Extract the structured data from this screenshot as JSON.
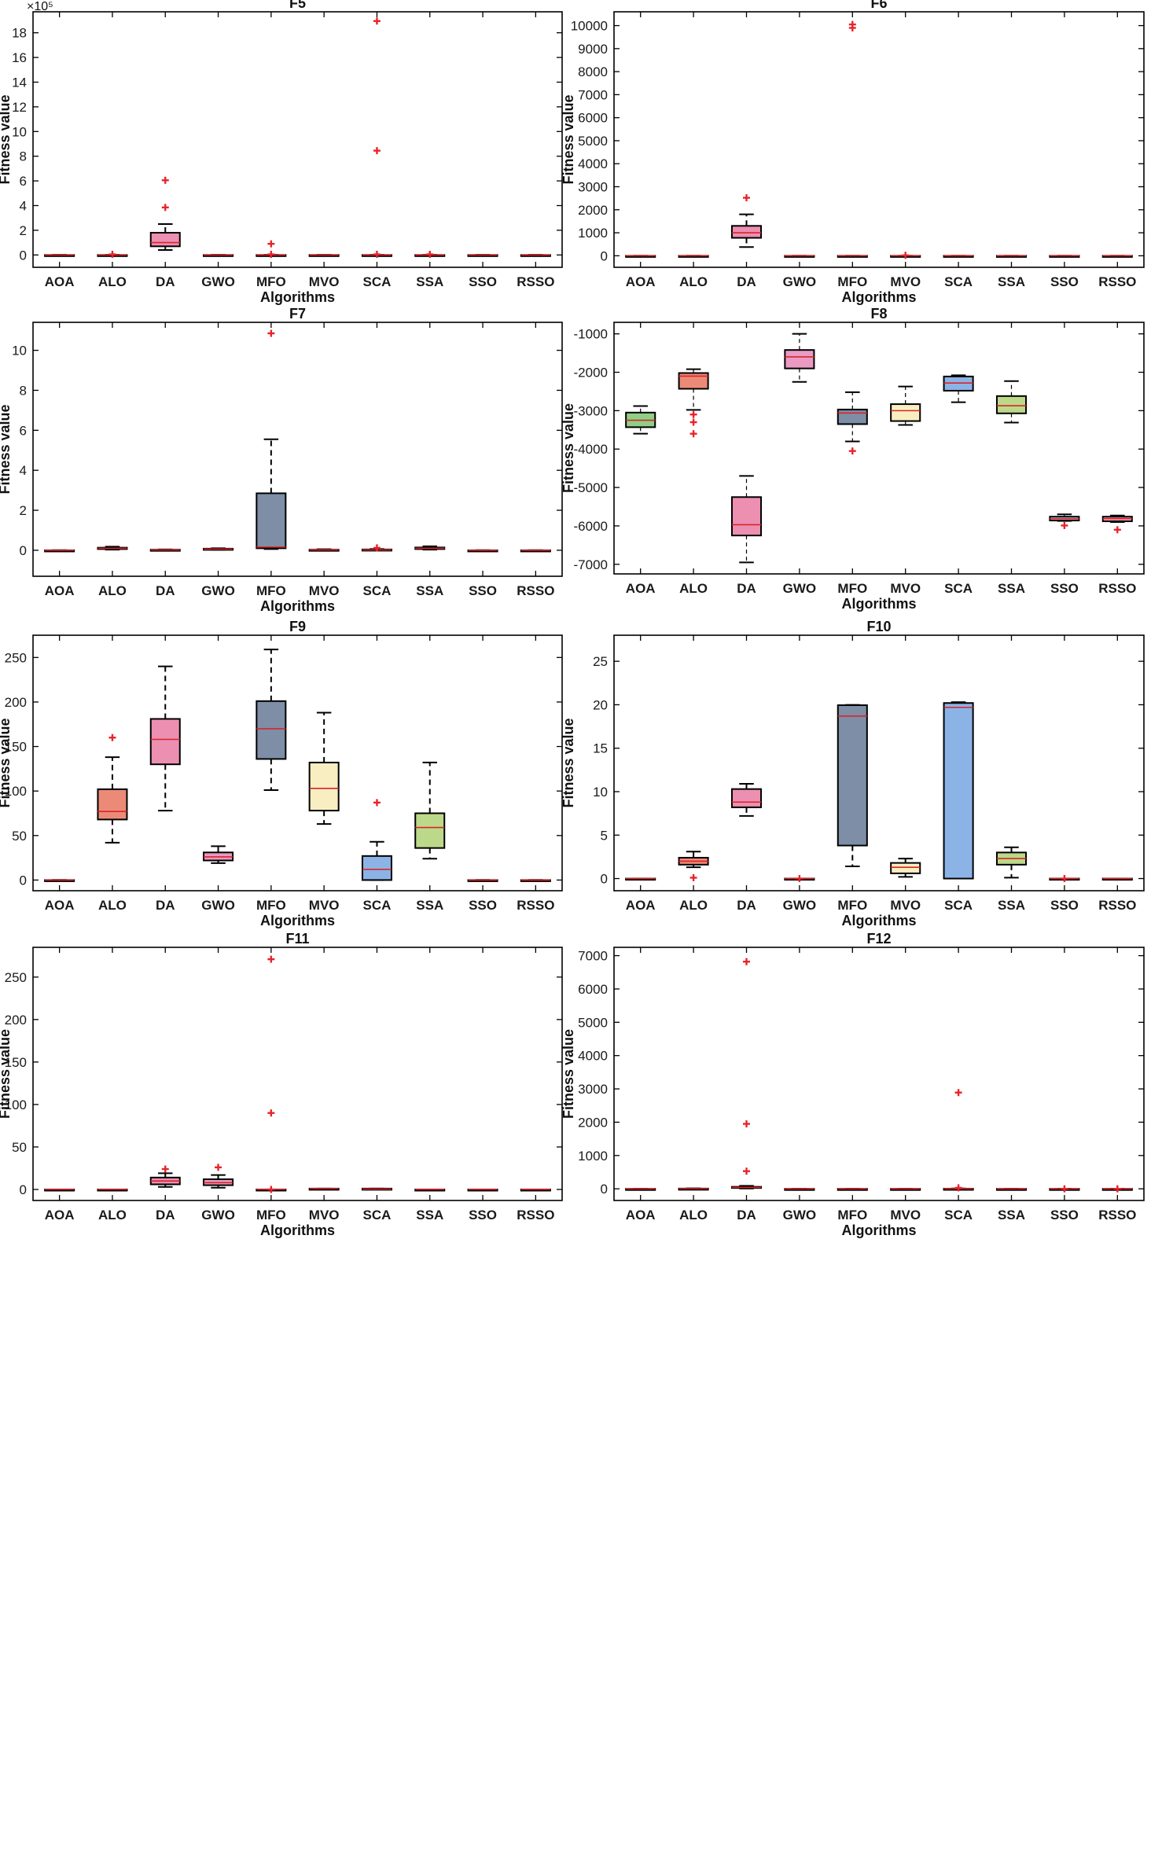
{
  "figure": {
    "xlabel": "Algorithms",
    "ylabel": "Fitness value"
  },
  "colors": {
    "AOA": "#8fcf86",
    "ALO": "#ec8a78",
    "DA": "#ec8fb1",
    "GWO": "#e99bc3",
    "MFO": "#7d8ea6",
    "MVO": "#f9eec1",
    "SCA": "#8cb3e6",
    "SSA": "#bcd98a",
    "SSO": "#c9d6ee",
    "RSSO": "#f2a5bd",
    "outlier": "#e8232b",
    "median": "#d9242a"
  },
  "chart_data": [
    {
      "type": "box",
      "title": "F5",
      "xlabel": "Algorithms",
      "ylabel": "Fitness value",
      "y_exponent_label": "×10⁵",
      "categories": [
        "AOA",
        "ALO",
        "DA",
        "GWO",
        "MFO",
        "MVO",
        "SCA",
        "SSA",
        "SSO",
        "RSSO"
      ],
      "ylim": [
        -1,
        19.7
      ],
      "yticks": [
        0,
        2,
        4,
        6,
        8,
        10,
        12,
        14,
        16,
        18
      ],
      "boxes": [
        {
          "wlo": 0,
          "q1": 0,
          "med": 0,
          "q3": 0,
          "whi": 0,
          "outliers": []
        },
        {
          "wlo": 0,
          "q1": 0,
          "med": 0,
          "q3": 0,
          "whi": 0,
          "outliers": [
            0.05
          ]
        },
        {
          "wlo": 0.4,
          "q1": 0.7,
          "med": 1.0,
          "q3": 1.8,
          "whi": 2.5,
          "outliers": [
            3.85,
            6.05
          ]
        },
        {
          "wlo": 0,
          "q1": 0,
          "med": 0,
          "q3": 0,
          "whi": 0,
          "outliers": []
        },
        {
          "wlo": 0,
          "q1": 0,
          "med": 0,
          "q3": 0,
          "whi": 0,
          "outliers": [
            0.05,
            0.9
          ]
        },
        {
          "wlo": 0,
          "q1": 0,
          "med": 0,
          "q3": 0,
          "whi": 0,
          "outliers": []
        },
        {
          "wlo": 0,
          "q1": 0,
          "med": 0,
          "q3": 0,
          "whi": 0,
          "outliers": [
            0.05,
            8.45,
            18.95
          ]
        },
        {
          "wlo": 0,
          "q1": 0,
          "med": 0,
          "q3": 0,
          "whi": 0,
          "outliers": [
            0.05
          ]
        },
        {
          "wlo": 0,
          "q1": 0,
          "med": 0,
          "q3": 0,
          "whi": 0,
          "outliers": []
        },
        {
          "wlo": 0,
          "q1": 0,
          "med": 0,
          "q3": 0,
          "whi": 0,
          "outliers": []
        }
      ]
    },
    {
      "type": "box",
      "title": "F6",
      "xlabel": "Algorithms",
      "ylabel": "Fitness value",
      "categories": [
        "AOA",
        "ALO",
        "DA",
        "GWO",
        "MFO",
        "MVO",
        "SCA",
        "SSA",
        "SSO",
        "RSSO"
      ],
      "ylim": [
        -500,
        10600
      ],
      "yticks": [
        0,
        1000,
        2000,
        3000,
        4000,
        5000,
        6000,
        7000,
        8000,
        9000,
        10000
      ],
      "boxes": [
        {
          "wlo": 0,
          "q1": 0,
          "med": 0,
          "q3": 0,
          "whi": 0,
          "outliers": []
        },
        {
          "wlo": 0,
          "q1": 0,
          "med": 0,
          "q3": 0,
          "whi": 0,
          "outliers": []
        },
        {
          "wlo": 380,
          "q1": 780,
          "med": 1000,
          "q3": 1300,
          "whi": 1800,
          "outliers": [
            2520
          ]
        },
        {
          "wlo": 0,
          "q1": 0,
          "med": 0,
          "q3": 0,
          "whi": 0,
          "outliers": []
        },
        {
          "wlo": 0,
          "q1": 0,
          "med": 0,
          "q3": 0,
          "whi": 0,
          "outliers": [
            9900,
            10050
          ]
        },
        {
          "wlo": 0,
          "q1": 0,
          "med": 0,
          "q3": 0,
          "whi": 0,
          "outliers": [
            20
          ]
        },
        {
          "wlo": 0,
          "q1": 0,
          "med": 0,
          "q3": 0,
          "whi": 0,
          "outliers": []
        },
        {
          "wlo": 0,
          "q1": 0,
          "med": 0,
          "q3": 0,
          "whi": 0,
          "outliers": []
        },
        {
          "wlo": 0,
          "q1": 0,
          "med": 0,
          "q3": 0,
          "whi": 0,
          "outliers": []
        },
        {
          "wlo": 0,
          "q1": 0,
          "med": 0,
          "q3": 0,
          "whi": 0,
          "outliers": []
        }
      ]
    },
    {
      "type": "box",
      "title": "F7",
      "xlabel": "Algorithms",
      "ylabel": "Fitness value",
      "categories": [
        "AOA",
        "ALO",
        "DA",
        "GWO",
        "MFO",
        "MVO",
        "SCA",
        "SSA",
        "SSO",
        "RSSO"
      ],
      "ylim": [
        -1.3,
        11.4
      ],
      "yticks": [
        0,
        2,
        4,
        6,
        8,
        10
      ],
      "boxes": [
        {
          "wlo": 0,
          "q1": 0,
          "med": 0,
          "q3": 0,
          "whi": 0,
          "outliers": []
        },
        {
          "wlo": 0.03,
          "q1": 0.06,
          "med": 0.1,
          "q3": 0.13,
          "whi": 0.18,
          "outliers": []
        },
        {
          "wlo": 0,
          "q1": 0.01,
          "med": 0.02,
          "q3": 0.03,
          "whi": 0.04,
          "outliers": []
        },
        {
          "wlo": 0.02,
          "q1": 0.04,
          "med": 0.06,
          "q3": 0.08,
          "whi": 0.1,
          "outliers": []
        },
        {
          "wlo": 0.06,
          "q1": 0.1,
          "med": 0.16,
          "q3": 2.85,
          "whi": 5.55,
          "outliers": [
            10.85
          ]
        },
        {
          "wlo": 0,
          "q1": 0.01,
          "med": 0.02,
          "q3": 0.03,
          "whi": 0.05,
          "outliers": []
        },
        {
          "wlo": 0,
          "q1": 0.01,
          "med": 0.02,
          "q3": 0.04,
          "whi": 0.06,
          "outliers": [
            0.12
          ]
        },
        {
          "wlo": 0.03,
          "q1": 0.06,
          "med": 0.1,
          "q3": 0.14,
          "whi": 0.2,
          "outliers": []
        },
        {
          "wlo": 0,
          "q1": 0,
          "med": 0,
          "q3": 0,
          "whi": 0,
          "outliers": []
        },
        {
          "wlo": 0,
          "q1": 0,
          "med": 0,
          "q3": 0,
          "whi": 0,
          "outliers": []
        }
      ]
    },
    {
      "type": "box",
      "title": "F8",
      "xlabel": "Algorithms",
      "ylabel": "Fitness value",
      "categories": [
        "AOA",
        "ALO",
        "DA",
        "GWO",
        "MFO",
        "MVO",
        "SCA",
        "SSA",
        "SSO",
        "RSSO"
      ],
      "ylim": [
        -7250,
        -700
      ],
      "yticks": [
        -7000,
        -6000,
        -5000,
        -4000,
        -3000,
        -2000,
        -1000
      ],
      "boxes": [
        {
          "wlo": -3600,
          "q1": -3430,
          "med": -3250,
          "q3": -3050,
          "whi": -2880,
          "outliers": []
        },
        {
          "wlo": -2980,
          "q1": -2430,
          "med": -2100,
          "q3": -2020,
          "whi": -1920,
          "outliers": [
            -3100,
            -3300,
            -3600
          ]
        },
        {
          "wlo": -6950,
          "q1": -6250,
          "med": -5970,
          "q3": -5250,
          "whi": -4700,
          "outliers": []
        },
        {
          "wlo": -2250,
          "q1": -1900,
          "med": -1600,
          "q3": -1420,
          "whi": -1000,
          "outliers": []
        },
        {
          "wlo": -3800,
          "q1": -3350,
          "med": -3060,
          "q3": -2970,
          "whi": -2520,
          "outliers": [
            -4050
          ]
        },
        {
          "wlo": -3370,
          "q1": -3270,
          "med": -3000,
          "q3": -2830,
          "whi": -2370,
          "outliers": []
        },
        {
          "wlo": -2780,
          "q1": -2480,
          "med": -2280,
          "q3": -2110,
          "whi": -2080,
          "outliers": []
        },
        {
          "wlo": -3310,
          "q1": -3070,
          "med": -2870,
          "q3": -2620,
          "whi": -2230,
          "outliers": []
        },
        {
          "wlo": -5870,
          "q1": -5860,
          "med": -5810,
          "q3": -5760,
          "whi": -5700,
          "outliers": [
            -5990
          ]
        },
        {
          "wlo": -5900,
          "q1": -5880,
          "med": -5810,
          "q3": -5760,
          "whi": -5730,
          "outliers": [
            -6100
          ]
        }
      ]
    },
    {
      "type": "box",
      "title": "F9",
      "xlabel": "Algorithms",
      "ylabel": "Fitness value",
      "categories": [
        "AOA",
        "ALO",
        "DA",
        "GWO",
        "MFO",
        "MVO",
        "SCA",
        "SSA",
        "SSO",
        "RSSO"
      ],
      "ylim": [
        -12,
        275
      ],
      "yticks": [
        0,
        50,
        100,
        150,
        200,
        250
      ],
      "boxes": [
        {
          "wlo": 0,
          "q1": 0,
          "med": 0,
          "q3": 0,
          "whi": 0,
          "outliers": []
        },
        {
          "wlo": 42,
          "q1": 68,
          "med": 77,
          "q3": 102,
          "whi": 138,
          "outliers": [
            160
          ]
        },
        {
          "wlo": 78,
          "q1": 130,
          "med": 158,
          "q3": 181,
          "whi": 240,
          "outliers": []
        },
        {
          "wlo": 19,
          "q1": 22,
          "med": 26,
          "q3": 31,
          "whi": 38,
          "outliers": []
        },
        {
          "wlo": 101,
          "q1": 136,
          "med": 170,
          "q3": 201,
          "whi": 259,
          "outliers": []
        },
        {
          "wlo": 63,
          "q1": 78,
          "med": 103,
          "q3": 132,
          "whi": 188,
          "outliers": []
        },
        {
          "wlo": 0,
          "q1": 0,
          "med": 12,
          "q3": 27,
          "whi": 43,
          "outliers": [
            87
          ]
        },
        {
          "wlo": 24,
          "q1": 36,
          "med": 59,
          "q3": 75,
          "whi": 132,
          "outliers": []
        },
        {
          "wlo": 0,
          "q1": 0,
          "med": 0,
          "q3": 0,
          "whi": 0,
          "outliers": []
        },
        {
          "wlo": 0,
          "q1": 0,
          "med": 0,
          "q3": 0,
          "whi": 0,
          "outliers": []
        }
      ]
    },
    {
      "type": "box",
      "title": "F10",
      "xlabel": "Algorithms",
      "ylabel": "Fitness value",
      "categories": [
        "AOA",
        "ALO",
        "DA",
        "GWO",
        "MFO",
        "MVO",
        "SCA",
        "SSA",
        "SSO",
        "RSSO"
      ],
      "ylim": [
        -1.4,
        28
      ],
      "yticks": [
        0,
        5,
        10,
        15,
        20,
        25
      ],
      "boxes": [
        {
          "wlo": 0,
          "q1": 0,
          "med": 0,
          "q3": 0,
          "whi": 0,
          "outliers": []
        },
        {
          "wlo": 1.3,
          "q1": 1.6,
          "med": 2.0,
          "q3": 2.4,
          "whi": 3.1,
          "outliers": [
            0.1
          ]
        },
        {
          "wlo": 7.2,
          "q1": 8.2,
          "med": 8.8,
          "q3": 10.3,
          "whi": 10.9,
          "outliers": []
        },
        {
          "wlo": 0,
          "q1": 0,
          "med": 0,
          "q3": 0,
          "whi": 0,
          "outliers": [
            0
          ]
        },
        {
          "wlo": 1.4,
          "q1": 3.8,
          "med": 18.7,
          "q3": 19.95,
          "whi": 19.98,
          "outliers": []
        },
        {
          "wlo": 0.2,
          "q1": 0.6,
          "med": 1.3,
          "q3": 1.8,
          "whi": 2.3,
          "outliers": []
        },
        {
          "wlo": 0,
          "q1": 0,
          "med": 19.7,
          "q3": 20.2,
          "whi": 20.3,
          "outliers": []
        },
        {
          "wlo": 0.1,
          "q1": 1.6,
          "med": 2.3,
          "q3": 3.0,
          "whi": 3.6,
          "outliers": []
        },
        {
          "wlo": 0,
          "q1": 0,
          "med": 0,
          "q3": 0,
          "whi": 0,
          "outliers": [
            0
          ]
        },
        {
          "wlo": 0,
          "q1": 0,
          "med": 0,
          "q3": 0,
          "whi": 0,
          "outliers": []
        }
      ]
    },
    {
      "type": "box",
      "title": "F11",
      "xlabel": "Algorithms",
      "ylabel": "Fitness value",
      "categories": [
        "AOA",
        "ALO",
        "DA",
        "GWO",
        "MFO",
        "MVO",
        "SCA",
        "SSA",
        "SSO",
        "RSSO"
      ],
      "ylim": [
        -13,
        285
      ],
      "yticks": [
        0,
        50,
        100,
        150,
        200,
        250
      ],
      "boxes": [
        {
          "wlo": 0,
          "q1": 0,
          "med": 0,
          "q3": 0,
          "whi": 0,
          "outliers": []
        },
        {
          "wlo": 0,
          "q1": 0,
          "med": 0,
          "q3": 0,
          "whi": 0,
          "outliers": []
        },
        {
          "wlo": 3,
          "q1": 6,
          "med": 10,
          "q3": 14,
          "whi": 19,
          "outliers": [
            24
          ]
        },
        {
          "wlo": 2,
          "q1": 5,
          "med": 8,
          "q3": 12,
          "whi": 17,
          "outliers": [
            26
          ]
        },
        {
          "wlo": 0,
          "q1": 0,
          "med": 0,
          "q3": 0,
          "whi": 0,
          "outliers": [
            0,
            90,
            271
          ]
        },
        {
          "wlo": 0,
          "q1": 0,
          "med": 1,
          "q3": 1,
          "whi": 1,
          "outliers": []
        },
        {
          "wlo": 0,
          "q1": 0,
          "med": 0.5,
          "q3": 1,
          "whi": 1,
          "outliers": []
        },
        {
          "wlo": 0,
          "q1": 0,
          "med": 0,
          "q3": 0,
          "whi": 0,
          "outliers": []
        },
        {
          "wlo": 0,
          "q1": 0,
          "med": 0,
          "q3": 0,
          "whi": 0,
          "outliers": []
        },
        {
          "wlo": 0,
          "q1": 0,
          "med": 0,
          "q3": 0,
          "whi": 0,
          "outliers": []
        }
      ]
    },
    {
      "type": "box",
      "title": "F12",
      "xlabel": "Algorithms",
      "ylabel": "Fitness value",
      "categories": [
        "AOA",
        "ALO",
        "DA",
        "GWO",
        "MFO",
        "MVO",
        "SCA",
        "SSA",
        "SSO",
        "RSSO"
      ],
      "ylim": [
        -350,
        7250
      ],
      "yticks": [
        0,
        1000,
        2000,
        3000,
        4000,
        5000,
        6000,
        7000
      ],
      "boxes": [
        {
          "wlo": 0,
          "q1": 0,
          "med": 0,
          "q3": 0,
          "whi": 0,
          "outliers": []
        },
        {
          "wlo": 0,
          "q1": 2,
          "med": 4,
          "q3": 8,
          "whi": 12,
          "outliers": []
        },
        {
          "wlo": 10,
          "q1": 25,
          "med": 40,
          "q3": 60,
          "whi": 90,
          "outliers": [
            530,
            1950,
            6820
          ]
        },
        {
          "wlo": 0,
          "q1": 0,
          "med": 0,
          "q3": 0,
          "whi": 0,
          "outliers": []
        },
        {
          "wlo": 0,
          "q1": 0,
          "med": 0,
          "q3": 0,
          "whi": 0,
          "outliers": []
        },
        {
          "wlo": 0,
          "q1": 0,
          "med": 0,
          "q3": 0,
          "whi": 0,
          "outliers": []
        },
        {
          "wlo": 0,
          "q1": 0,
          "med": 2,
          "q3": 5,
          "whi": 10,
          "outliers": [
            30,
            2890
          ]
        },
        {
          "wlo": 0,
          "q1": 0,
          "med": 0,
          "q3": 0,
          "whi": 0,
          "outliers": []
        },
        {
          "wlo": 0,
          "q1": 0,
          "med": 0,
          "q3": 0,
          "whi": 0,
          "outliers": [
            0
          ]
        },
        {
          "wlo": 0,
          "q1": 0,
          "med": 0,
          "q3": 0,
          "whi": 0,
          "outliers": [
            0
          ]
        }
      ]
    }
  ]
}
